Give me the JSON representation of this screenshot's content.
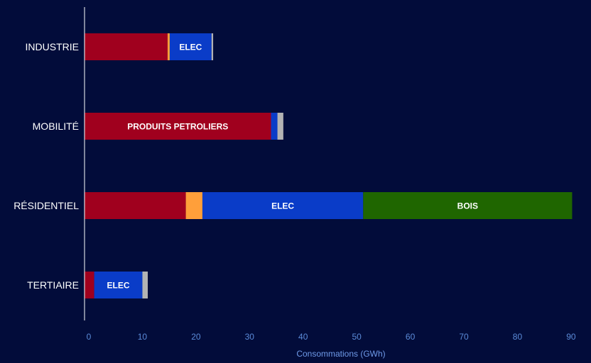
{
  "chart_data": {
    "type": "bar",
    "orientation": "horizontal",
    "stacked": true,
    "categories": [
      "INDUSTRIE",
      "MOBILITÉ",
      "RÉSIDENTIEL",
      "TERTIAIRE"
    ],
    "series": [
      {
        "key": "produits_petroliers",
        "color": "#a0001e",
        "values": [
          15.5,
          34.8,
          18.9,
          1.8
        ]
      },
      {
        "key": "gaz",
        "color": "#ff9f3a",
        "values": [
          0.4,
          0.0,
          3.1,
          0.0
        ]
      },
      {
        "key": "elec",
        "color": "#0a3cc8",
        "values": [
          7.8,
          1.2,
          30.0,
          9.0
        ]
      },
      {
        "key": "bois",
        "color": "#1f6600",
        "values": [
          0.0,
          0.0,
          39.0,
          0.0
        ]
      },
      {
        "key": "autres",
        "color": "#b3b3b3",
        "values": [
          0.3,
          1.1,
          0.0,
          1.0
        ]
      }
    ],
    "segment_labels": [
      {
        "category": "INDUSTRIE",
        "series": "elec",
        "text": "ELEC"
      },
      {
        "category": "MOBILITÉ",
        "series": "produits_petroliers",
        "text": "PRODUITS PETROLIERS"
      },
      {
        "category": "RÉSIDENTIEL",
        "series": "elec",
        "text": "ELEC"
      },
      {
        "category": "RÉSIDENTIEL",
        "series": "bois",
        "text": "BOIS"
      },
      {
        "category": "TERTIAIRE",
        "series": "elec",
        "text": "ELEC"
      }
    ],
    "xlabel": "Consommations (GWh)",
    "xlim": [
      0,
      92
    ],
    "xticks": [
      0,
      10,
      20,
      30,
      40,
      50,
      60,
      70,
      80,
      90
    ],
    "grid": false,
    "legend": "none",
    "background": "#020c3a"
  }
}
